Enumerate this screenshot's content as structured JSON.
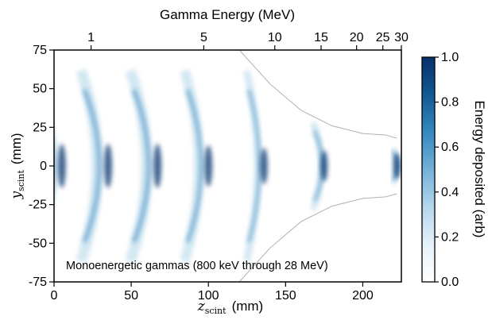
{
  "chart_data": {
    "type": "heatmap",
    "title": "",
    "annotation": "Monoenergetic gammas (800 keV through 28 MeV)",
    "xlabel": {
      "symbol": "z",
      "subscript": "scint",
      "unit": "(mm)"
    },
    "ylabel": {
      "symbol": "y",
      "subscript": "scint",
      "unit": "(mm)"
    },
    "top_axis_label": "Gamma Energy (MeV)",
    "colorbar_label": "Energy deposited (arb)",
    "xlim": [
      0,
      225
    ],
    "ylim": [
      -75,
      75
    ],
    "x_ticks": [
      0,
      50,
      100,
      150,
      200
    ],
    "y_ticks": [
      75,
      50,
      25,
      0,
      -25,
      -50,
      -75
    ],
    "top_ticks": [
      {
        "label": "1",
        "z": 24
      },
      {
        "label": "5",
        "z": 97
      },
      {
        "label": "10",
        "z": 143
      },
      {
        "label": "15",
        "z": 173
      },
      {
        "label": "20",
        "z": 196
      },
      {
        "label": "25",
        "z": 213
      },
      {
        "label": "30",
        "z": 225
      }
    ],
    "colorbar_range": [
      0.0,
      1.0
    ],
    "colorbar_ticks": [
      "1.0",
      "0.8",
      "0.6",
      "0.4",
      "0.2",
      "0.0"
    ],
    "colormap": [
      "#ffffff",
      "#e6f1fa",
      "#b5d6ec",
      "#73b1d8",
      "#3588c0",
      "#115a93",
      "#08306b"
    ],
    "deposition_bands": [
      {
        "z": 5,
        "spread": 0.34
      },
      {
        "z": 35,
        "spread": 0.34
      },
      {
        "z": 67,
        "spread": 0.34
      },
      {
        "z": 100,
        "spread": 0.3
      },
      {
        "z": 136,
        "spread": 0.22
      },
      {
        "z": 175,
        "spread": 0.14
      },
      {
        "z": 222,
        "spread": 0.05
      }
    ],
    "acceptance_envelope": {
      "color": "#b0b0b0",
      "points": [
        [
          120,
          75
        ],
        [
          140,
          53
        ],
        [
          160,
          36
        ],
        [
          180,
          26
        ],
        [
          200,
          21
        ],
        [
          215,
          20
        ],
        [
          222,
          18
        ]
      ]
    }
  }
}
